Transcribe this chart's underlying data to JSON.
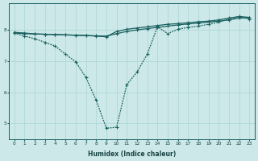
{
  "xlabel": "Humidex (Indice chaleur)",
  "bg_color": "#cce8e8",
  "line_color": "#1a6060",
  "grid_color": "#aad4d4",
  "xlim": [
    -0.5,
    23.5
  ],
  "ylim": [
    4.5,
    8.85
  ],
  "xticks": [
    0,
    1,
    2,
    3,
    4,
    5,
    6,
    7,
    8,
    9,
    10,
    11,
    12,
    13,
    14,
    15,
    16,
    17,
    18,
    19,
    20,
    21,
    22,
    23
  ],
  "yticks": [
    5,
    6,
    7,
    8
  ],
  "line1_x": [
    0,
    1,
    2,
    3,
    4,
    5,
    6,
    7,
    8,
    9,
    10,
    11,
    12,
    13,
    14,
    15,
    16,
    17,
    18,
    19,
    20,
    21,
    22,
    23
  ],
  "line1_y": [
    7.9,
    7.88,
    7.87,
    7.86,
    7.85,
    7.84,
    7.83,
    7.82,
    7.81,
    7.8,
    7.88,
    7.95,
    8.0,
    8.04,
    8.08,
    8.12,
    8.16,
    8.19,
    8.22,
    8.25,
    8.28,
    8.32,
    8.38,
    8.38
  ],
  "line2_x": [
    0,
    1,
    2,
    3,
    4,
    5,
    6,
    7,
    8,
    9,
    10,
    11,
    12,
    13,
    14,
    15,
    16,
    17,
    18,
    19,
    20,
    21,
    22,
    23
  ],
  "line2_y": [
    7.92,
    7.9,
    7.87,
    7.86,
    7.85,
    7.84,
    7.83,
    7.82,
    7.8,
    7.78,
    7.95,
    8.02,
    8.06,
    8.1,
    8.14,
    8.18,
    8.2,
    8.23,
    8.26,
    8.28,
    8.32,
    8.38,
    8.43,
    8.4
  ],
  "line3_x": [
    0,
    1,
    2,
    3,
    4,
    5,
    6,
    7,
    8,
    9,
    10,
    11,
    12,
    13,
    14,
    15,
    16,
    17,
    18,
    19,
    20,
    21,
    22,
    23
  ],
  "line3_y": [
    7.9,
    7.8,
    7.72,
    7.6,
    7.48,
    7.22,
    6.98,
    6.48,
    5.75,
    4.85,
    4.88,
    6.25,
    6.65,
    7.22,
    8.1,
    7.88,
    8.02,
    8.08,
    8.12,
    8.18,
    8.25,
    8.35,
    8.42,
    8.35
  ]
}
